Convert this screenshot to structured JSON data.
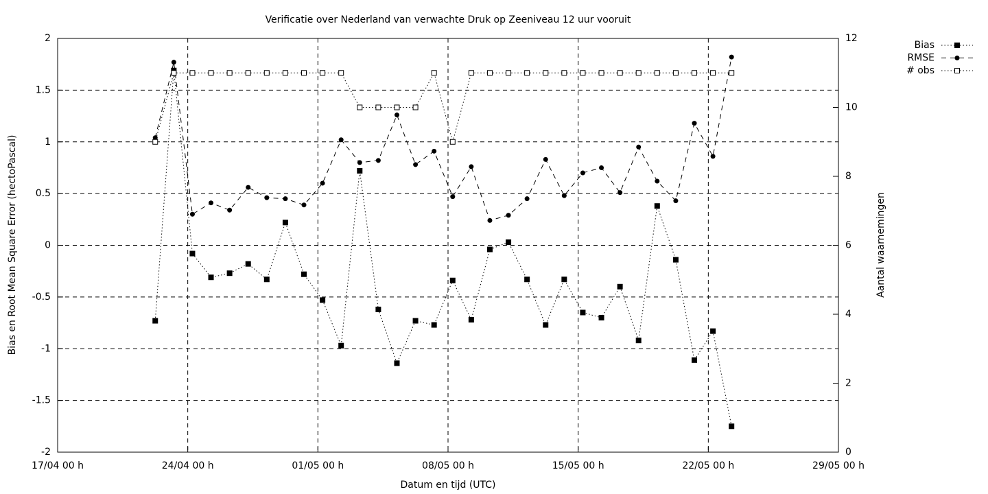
{
  "chart_data": {
    "type": "line",
    "title": "Verificatie over Nederland van verwachte Druk op Zeeniveau 12 uur vooruit",
    "xlabel": "Datum en tijd (UTC)",
    "ylabel": "Bias en Root Mean Square Error (hectoPascal)",
    "y2label": "Aantal waarnemingen",
    "x": [
      5.25,
      6.25,
      7.25,
      8.25,
      9.25,
      10.25,
      11.25,
      12.25,
      13.25,
      14.25,
      15.25,
      16.25,
      17.25,
      18.25,
      19.25,
      20.25,
      21.25,
      22.25,
      23.25,
      24.25,
      25.25,
      26.25,
      27.25,
      28.25,
      29.25,
      30.25,
      31.25,
      32.25,
      33.25,
      34.25,
      35.25,
      36.25
    ],
    "xlim": [
      0,
      42
    ],
    "xticks": [
      {
        "value": 0,
        "label": "17/04 00 h"
      },
      {
        "value": 7,
        "label": "24/04 00 h"
      },
      {
        "value": 14,
        "label": "01/05 00 h"
      },
      {
        "value": 21,
        "label": "08/05 00 h"
      },
      {
        "value": 28,
        "label": "15/05 00 h"
      },
      {
        "value": 35,
        "label": "22/05 00 h"
      },
      {
        "value": 42,
        "label": "29/05 00 h"
      }
    ],
    "ylim": [
      -2,
      2
    ],
    "yticks": [
      -2,
      -1.5,
      -1,
      -0.5,
      0,
      0.5,
      1,
      1.5,
      2
    ],
    "y2lim": [
      0,
      12
    ],
    "y2ticks": [
      0,
      2,
      4,
      6,
      8,
      10,
      12
    ],
    "grid": true,
    "legend": "top-right",
    "series": [
      {
        "name": "Bias",
        "color": "#000000",
        "linestyle": "dotted",
        "marker": "square-filled",
        "values": [
          -0.73,
          1.69,
          -0.08,
          -0.31,
          -0.27,
          -0.18,
          -0.33,
          0.22,
          -0.28,
          -0.53,
          -0.97,
          0.72,
          -0.62,
          -1.14,
          -0.73,
          -0.77,
          -0.34,
          -0.72,
          -0.04,
          0.03,
          -0.33,
          -0.77,
          -0.33,
          -0.65,
          -0.7,
          -0.4,
          -0.92,
          0.38,
          -0.14,
          -1.11,
          -0.83,
          -1.75
        ]
      },
      {
        "name": "RMSE",
        "color": "#000000",
        "linestyle": "dashed",
        "marker": "circle-filled",
        "values": [
          1.04,
          1.77,
          0.3,
          0.41,
          0.34,
          0.56,
          0.46,
          0.45,
          0.39,
          0.6,
          1.02,
          0.8,
          0.82,
          1.26,
          0.78,
          0.91,
          0.47,
          0.76,
          0.24,
          0.29,
          0.45,
          0.83,
          0.48,
          0.7,
          0.75,
          0.51,
          0.95,
          0.62,
          0.43,
          1.18,
          0.86,
          1.82
        ]
      },
      {
        "name": "# obs",
        "color": "#000000",
        "linestyle": "dotted",
        "marker": "square-open",
        "axis": "y2",
        "values": [
          9,
          11,
          11,
          11,
          11,
          11,
          11,
          11,
          11,
          11,
          11,
          10,
          10,
          10,
          10,
          11,
          9,
          11,
          11,
          11,
          11,
          11,
          11,
          11,
          11,
          11,
          11,
          11,
          11,
          11,
          11,
          11
        ]
      }
    ]
  }
}
